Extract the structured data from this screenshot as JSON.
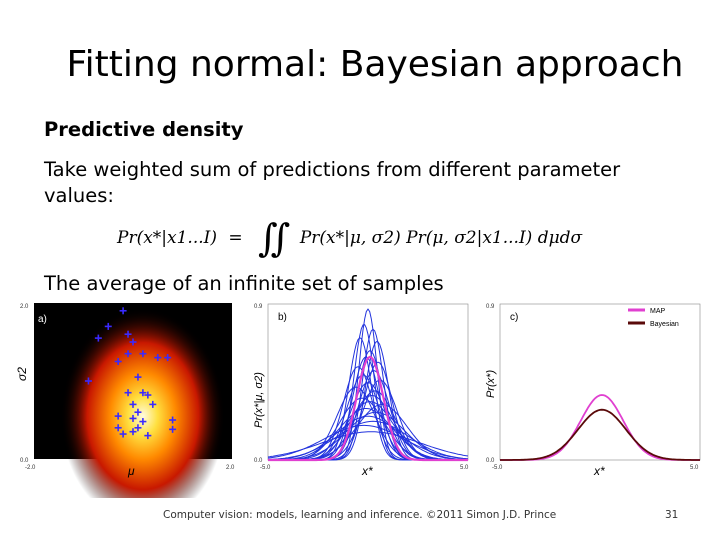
{
  "slide": {
    "title": "Fitting normal: Bayesian approach",
    "heading": "Predictive density",
    "body1": "Take weighted sum of predictions from different parameter values:",
    "body1_line1": "Take weighted sum of predictions from different parameter",
    "body1_line2": "values:",
    "body2": "The average of an infinite set of samples",
    "equation": {
      "lhs": "Pr(x*|x1...I)",
      "eq": "=",
      "integral": "∬",
      "term1": "Pr(x*|μ, σ2)",
      "term2": "Pr(μ, σ2|x1...I)",
      "diff": "dμdσ"
    },
    "footer": "Computer vision: models, learning and inference.  ©2011 Simon J.D. Prince",
    "page_number": "31"
  },
  "colors": {
    "map": "#e040d0",
    "bayesian": "#5a0a0a",
    "samples": "#2233dd",
    "cross": "#3a2aff"
  },
  "chart_data": [
    {
      "type": "heatmap",
      "panel": "a)",
      "xlabel": "μ",
      "ylabel": "σ2",
      "x_ticks": [
        "-2.0",
        "2.0"
      ],
      "y_ticks": [
        "0.0",
        "2.0"
      ],
      "xlim": [
        -2.0,
        2.0
      ],
      "ylim": [
        0.0,
        2.0
      ],
      "peak": {
        "mu": 0.2,
        "sigma2": 0.55
      },
      "samples": [
        [
          -0.5,
          1.7
        ],
        [
          -0.7,
          1.55
        ],
        [
          -0.2,
          1.9
        ],
        [
          -0.1,
          1.6
        ],
        [
          0.0,
          1.5
        ],
        [
          -0.1,
          1.35
        ],
        [
          0.2,
          1.35
        ],
        [
          0.5,
          1.3
        ],
        [
          0.7,
          1.3
        ],
        [
          -0.3,
          1.25
        ],
        [
          0.1,
          1.05
        ],
        [
          -0.9,
          1.0
        ],
        [
          0.2,
          0.85
        ],
        [
          -0.1,
          0.85
        ],
        [
          0.3,
          0.82
        ],
        [
          0.0,
          0.7
        ],
        [
          0.4,
          0.7
        ],
        [
          0.1,
          0.6
        ],
        [
          -0.3,
          0.55
        ],
        [
          0.8,
          0.5
        ],
        [
          0.0,
          0.52
        ],
        [
          0.2,
          0.48
        ],
        [
          -0.3,
          0.4
        ],
        [
          0.1,
          0.4
        ],
        [
          0.8,
          0.38
        ],
        [
          -0.2,
          0.32
        ],
        [
          0.0,
          0.35
        ],
        [
          0.3,
          0.3
        ]
      ]
    },
    {
      "type": "line",
      "panel": "b)",
      "xlabel": "x*",
      "ylabel": "Pr(x*|μ, σ2)",
      "x_ticks": [
        "-5.0",
        "5.0"
      ],
      "y_ticks": [
        "0.0",
        "0.9"
      ],
      "xlim": [
        -5.0,
        5.0
      ],
      "ylim": [
        0.0,
        0.9
      ],
      "series": [
        {
          "name": "samples",
          "params": [
            [
              0.0,
              0.21
            ],
            [
              -0.2,
              0.26
            ],
            [
              0.25,
              0.28
            ],
            [
              0.45,
              0.34
            ],
            [
              -0.4,
              0.32
            ],
            [
              0.1,
              0.4
            ],
            [
              -0.1,
              0.45
            ],
            [
              0.5,
              0.5
            ],
            [
              -0.5,
              0.55
            ],
            [
              0.3,
              0.6
            ],
            [
              -0.25,
              0.66
            ],
            [
              0.6,
              0.75
            ],
            [
              0.0,
              0.8
            ],
            [
              -0.6,
              0.9
            ],
            [
              0.35,
              1.0
            ],
            [
              0.2,
              1.15
            ],
            [
              -0.3,
              1.25
            ],
            [
              0.1,
              1.4
            ],
            [
              0.7,
              1.55
            ],
            [
              -0.1,
              1.8
            ],
            [
              0.4,
              2.1
            ],
            [
              0.0,
              2.5
            ],
            [
              0.25,
              3.2
            ],
            [
              -0.2,
              4.0
            ],
            [
              0.15,
              6.0
            ]
          ]
        },
        {
          "name": "MAP",
          "params": [
            [
              0.1,
              0.45
            ]
          ]
        }
      ]
    },
    {
      "type": "line",
      "panel": "c)",
      "xlabel": "x*",
      "ylabel": "Pr(x*)",
      "x_ticks": [
        "-5.0",
        "5.0"
      ],
      "y_ticks": [
        "0.0",
        "0.9"
      ],
      "xlim": [
        -5.0,
        5.0
      ],
      "ylim": [
        0.0,
        0.9
      ],
      "legend": [
        "MAP",
        "Bayesian"
      ],
      "series": [
        {
          "name": "MAP",
          "mean": 0.1,
          "sd": 1.06,
          "peak": 0.375
        },
        {
          "name": "Bayesian",
          "mean": 0.1,
          "sd": 1.2,
          "peak": 0.29
        }
      ]
    }
  ]
}
